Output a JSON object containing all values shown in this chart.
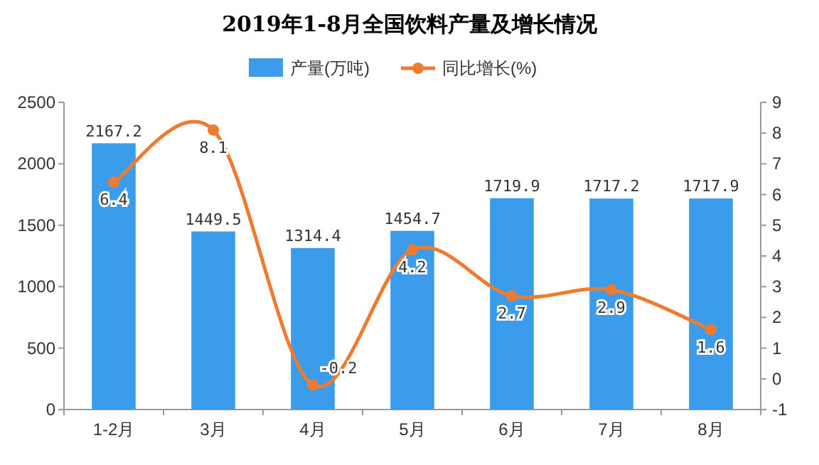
{
  "chart_data": {
    "type": "bar",
    "title": "2019年1-8月全国饮料产量及增长情况",
    "categories": [
      "1-2月",
      "3月",
      "4月",
      "5月",
      "6月",
      "7月",
      "8月"
    ],
    "series": [
      {
        "name": "产量(万吨)",
        "color": "#3c9cec",
        "values": [
          2167.2,
          1449.5,
          1314.4,
          1454.7,
          1719.9,
          1717.2,
          1717.9
        ]
      },
      {
        "name": "同比增长(%)",
        "type": "line",
        "axis": "y2",
        "color": "#ee7b30",
        "marker": "circle",
        "values": [
          6.4,
          8.1,
          -0.2,
          4.2,
          2.7,
          2.9,
          1.6
        ]
      }
    ],
    "ylim": [
      0,
      2500
    ],
    "yticks": [
      0,
      500,
      1000,
      1500,
      2000,
      2500
    ],
    "y2lim": [
      -1,
      9
    ],
    "y2ticks": [
      -1,
      0,
      1,
      2,
      3,
      4,
      5,
      6,
      7,
      8,
      9
    ],
    "data_labels": true,
    "legend": "top"
  }
}
